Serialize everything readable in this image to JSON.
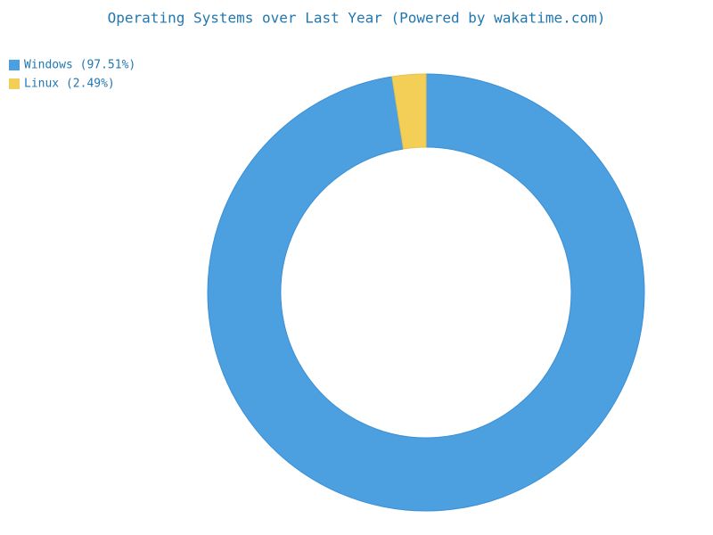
{
  "chart_data": {
    "type": "donut",
    "title": "Operating Systems over Last Year (Powered by wakatime.com)",
    "categories": [
      "Windows (97.51%)",
      "Linux (2.49%)"
    ],
    "values": [
      97.51,
      2.49
    ],
    "colors": [
      "#4ca0e0",
      "#f4cf57"
    ],
    "legend": "top-left"
  }
}
